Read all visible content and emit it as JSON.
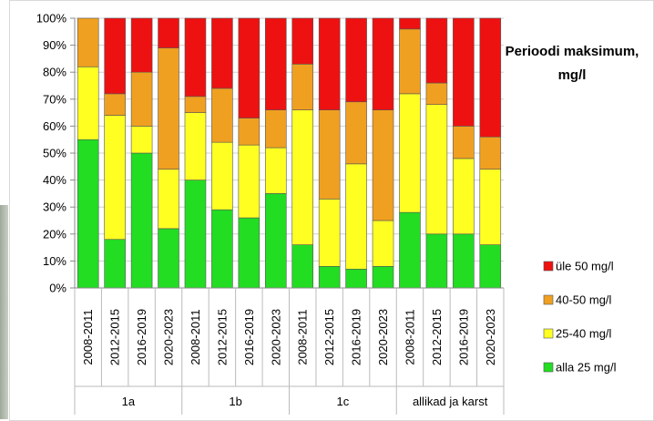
{
  "chart_data": {
    "type": "bar",
    "stacked": true,
    "percent": true,
    "title": "Perioodi maksimum, mg/l",
    "ylim": [
      0,
      100
    ],
    "yticks": [
      "0%",
      "10%",
      "20%",
      "30%",
      "40%",
      "50%",
      "60%",
      "70%",
      "80%",
      "90%",
      "100%"
    ],
    "groups": [
      {
        "name": "1a",
        "categories": [
          "2008-2011",
          "2012-2015",
          "2016-2019",
          "2020-2023"
        ]
      },
      {
        "name": "1b",
        "categories": [
          "2008-2011",
          "2012-2015",
          "2016-2019",
          "2020-2023"
        ]
      },
      {
        "name": "1c",
        "categories": [
          "2008-2011",
          "2012-2015",
          "2016-2019",
          "2020-2023"
        ]
      },
      {
        "name": "allikad ja karst",
        "categories": [
          "2008-2011",
          "2012-2015",
          "2016-2019",
          "2020-2023"
        ]
      }
    ],
    "series": [
      {
        "name": "alla 25 mg/l",
        "color": "#22dd22",
        "values": [
          55,
          18,
          50,
          22,
          40,
          29,
          26,
          35,
          16,
          8,
          7,
          8,
          28,
          20,
          20,
          16
        ]
      },
      {
        "name": "25-40 mg/l",
        "color": "#ffff22",
        "values": [
          27,
          46,
          10,
          22,
          25,
          25,
          27,
          17,
          50,
          25,
          39,
          17,
          44,
          48,
          28,
          28
        ]
      },
      {
        "name": "40-50 mg/l",
        "color": "#f0a020",
        "values": [
          18,
          8,
          20,
          45,
          6,
          20,
          10,
          14,
          17,
          33,
          23,
          41,
          24,
          8,
          12,
          12
        ]
      },
      {
        "name": "üle 50 mg/l",
        "color": "#ee1111",
        "values": [
          0,
          28,
          20,
          11,
          29,
          26,
          37,
          34,
          17,
          34,
          31,
          34,
          4,
          24,
          40,
          44
        ]
      }
    ],
    "legend_order": [
      "üle 50 mg/l",
      "40-50 mg/l",
      "25-40 mg/l",
      "alla 25 mg/l"
    ],
    "legend_position": "right"
  }
}
